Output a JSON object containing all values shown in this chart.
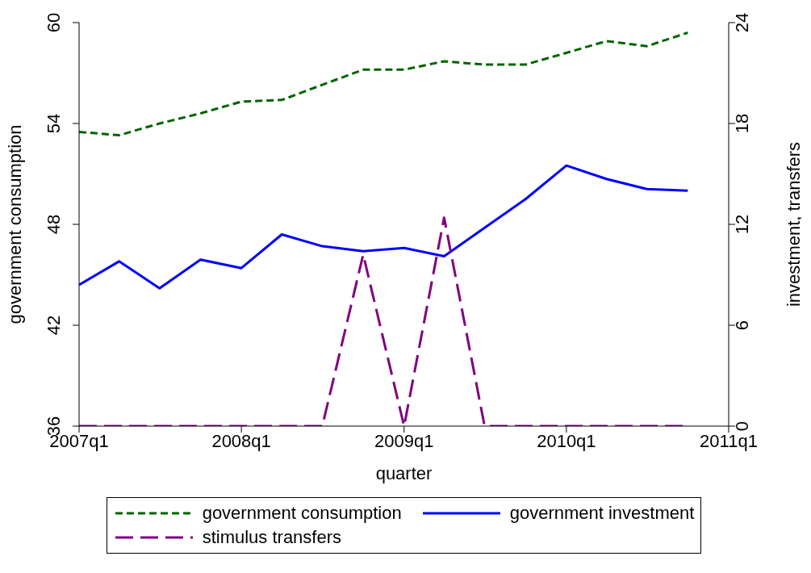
{
  "chart_data": {
    "type": "line",
    "xlabel": "quarter",
    "ylabel": "government consumption",
    "y2label": "investment, transfers",
    "x": [
      "2007-01-01",
      "2007-04-01",
      "2007-07-01",
      "2007-10-01",
      "2008-01-01",
      "2008-04-01",
      "2008-07-01",
      "2008-10-01",
      "2009-01-01",
      "2009-04-01",
      "2009-07-01",
      "2009-10-01",
      "2010-01-01",
      "2010-04-01",
      "2010-07-01",
      "2010-10-01"
    ],
    "series": [
      {
        "name": "government consumption",
        "color": "#006400",
        "line_style": "dashed",
        "values": [
          53.5,
          53.3,
          54.0,
          54.6,
          55.3,
          55.4,
          56.3,
          57.2,
          57.2,
          57.7,
          57.5,
          57.5,
          58.2,
          58.9,
          58.6,
          59.4
        ]
      },
      {
        "name": "government investment",
        "color": "#0000ff",
        "line_style": "solid",
        "axis": "y2",
        "values": [
          8.4,
          9.8,
          8.2,
          9.9,
          9.4,
          11.4,
          10.7,
          10.4,
          10.6,
          10.1,
          11.8,
          13.5,
          15.5,
          14.7,
          14.1,
          14.0
        ]
      },
      {
        "name": "stimulus transfers",
        "color": "#800080",
        "line_style": "longdash",
        "axis": "y2",
        "values": [
          0,
          0,
          0,
          0,
          0,
          0,
          0,
          10.2,
          0,
          12.4,
          0,
          0,
          0,
          0,
          0,
          0
        ]
      }
    ],
    "xlim": [
      "2007-01-01",
      "2011-01-01"
    ],
    "xticks": [
      {
        "value": "2007-01-01",
        "label": "2007q1"
      },
      {
        "value": "2008-01-01",
        "label": "2008q1"
      },
      {
        "value": "2009-01-01",
        "label": "2009q1"
      },
      {
        "value": "2010-01-01",
        "label": "2010q1"
      },
      {
        "value": "2011-01-01",
        "label": "2011q1"
      }
    ],
    "ylim": [
      36,
      60
    ],
    "yticks": [
      36,
      42,
      48,
      54,
      60
    ],
    "y2lim": [
      0,
      24
    ],
    "y2ticks": [
      0,
      6,
      12,
      18,
      24
    ],
    "legend": "bottom",
    "marker": "none"
  }
}
